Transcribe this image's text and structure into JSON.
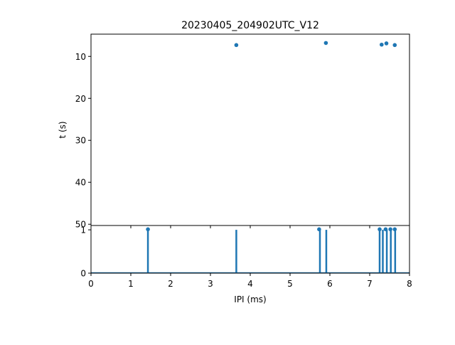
{
  "chart_data": [
    {
      "type": "scatter",
      "title": "20230405_204902UTC_V12",
      "xlabel": "",
      "ylabel": "t (s)",
      "xlim": [
        0,
        8
      ],
      "ylim": [
        50.3,
        4.7
      ],
      "y_inverted": true,
      "yticks": [
        10,
        20,
        30,
        40,
        50
      ],
      "xticks_labeled": false,
      "grid": false,
      "color": "#1f77b4",
      "points": [
        {
          "x": 1.43,
          "y": 51.2
        },
        {
          "x": 3.65,
          "y": 7.3
        },
        {
          "x": 5.73,
          "y": 51.2
        },
        {
          "x": 5.9,
          "y": 6.8
        },
        {
          "x": 7.25,
          "y": 51.2
        },
        {
          "x": 7.3,
          "y": 7.2
        },
        {
          "x": 7.4,
          "y": 51.2
        },
        {
          "x": 7.42,
          "y": 6.9
        },
        {
          "x": 7.52,
          "y": 51.2
        },
        {
          "x": 7.63,
          "y": 51.2
        },
        {
          "x": 7.63,
          "y": 7.3
        }
      ]
    },
    {
      "type": "line",
      "xlabel": "IPI (ms)",
      "ylabel": "",
      "xlim": [
        0,
        8
      ],
      "ylim": [
        0,
        1.1
      ],
      "xticks": [
        0,
        1,
        2,
        3,
        4,
        5,
        6,
        7,
        8
      ],
      "yticks": [
        0,
        1
      ],
      "grid": false,
      "color": "#1f77b4",
      "spikes": [
        1.43,
        3.65,
        5.75,
        5.91,
        7.25,
        7.33,
        7.43,
        7.53,
        7.64
      ],
      "spike_height": 1
    }
  ]
}
